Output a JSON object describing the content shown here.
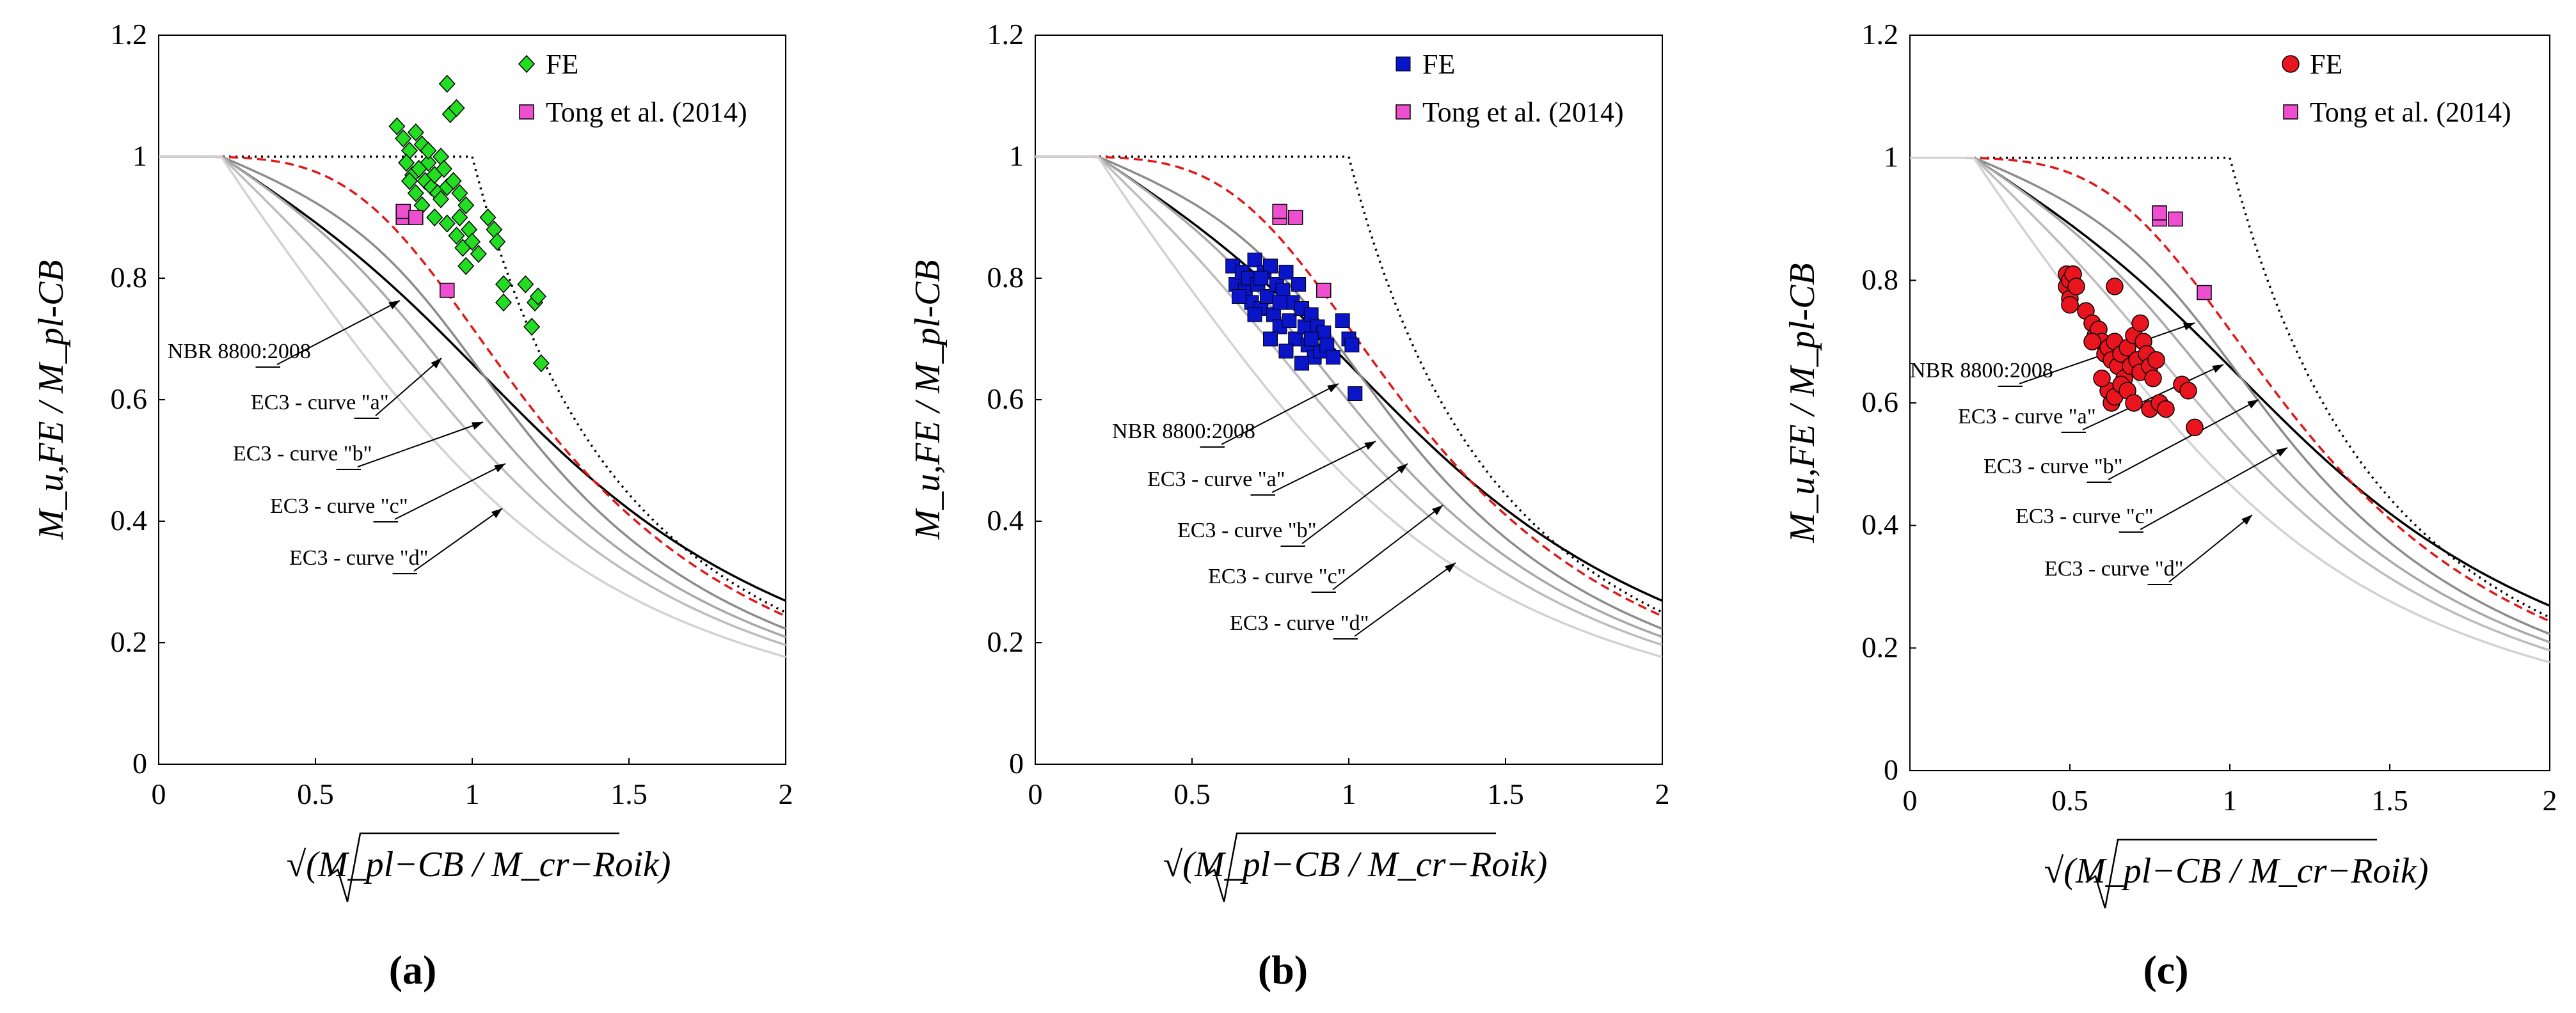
{
  "figure": {
    "panel_labels": [
      "(a)",
      "(b)",
      "(c)"
    ]
  },
  "chart_data": [
    {
      "type": "scatter",
      "panel": "(a)",
      "xlabel": "√(M_pl−CB / M_cr−Roik)",
      "ylabel": "M_u,FE / M_pl-CB",
      "xlim": [
        0,
        2
      ],
      "ylim": [
        0,
        1.2
      ],
      "x_ticks": [
        "0",
        "0.5",
        "1",
        "1.5",
        "2"
      ],
      "y_ticks": [
        "0",
        "0.2",
        "0.4",
        "0.6",
        "0.8",
        "1",
        "1.2"
      ],
      "legend": [
        "FE",
        "Tong et al. (2014)"
      ],
      "legend_position": "top-right",
      "fe_color": "#22dd22",
      "fe_marker": "diamond",
      "fe_points": [
        [
          0.76,
          1.05
        ],
        [
          0.78,
          1.03
        ],
        [
          0.8,
          1.01
        ],
        [
          0.82,
          1.04
        ],
        [
          0.84,
          1.02
        ],
        [
          0.86,
          0.99
        ],
        [
          0.79,
          0.99
        ],
        [
          0.81,
          0.97
        ],
        [
          0.83,
          0.98
        ],
        [
          0.85,
          0.96
        ],
        [
          0.87,
          0.95
        ],
        [
          0.89,
          0.94
        ],
        [
          0.88,
          0.97
        ],
        [
          0.9,
          0.93
        ],
        [
          0.92,
          0.95
        ],
        [
          0.94,
          0.96
        ],
        [
          0.96,
          0.94
        ],
        [
          0.98,
          0.92
        ],
        [
          0.9,
          1.0
        ],
        [
          0.91,
          0.98
        ],
        [
          0.93,
          1.07
        ],
        [
          0.95,
          1.08
        ],
        [
          0.92,
          1.12
        ],
        [
          0.86,
          1.01
        ],
        [
          0.84,
          0.92
        ],
        [
          0.88,
          0.9
        ],
        [
          0.92,
          0.89
        ],
        [
          0.95,
          0.87
        ],
        [
          0.97,
          0.85
        ],
        [
          0.99,
          0.88
        ],
        [
          1.0,
          0.86
        ],
        [
          1.02,
          0.84
        ],
        [
          0.98,
          0.82
        ],
        [
          0.96,
          0.9
        ],
        [
          1.05,
          0.9
        ],
        [
          1.07,
          0.88
        ],
        [
          1.08,
          0.86
        ],
        [
          1.1,
          0.79
        ],
        [
          1.1,
          0.76
        ],
        [
          1.17,
          0.79
        ],
        [
          1.2,
          0.76
        ],
        [
          1.21,
          0.77
        ],
        [
          1.19,
          0.72
        ],
        [
          1.22,
          0.66
        ],
        [
          0.8,
          0.96
        ],
        [
          0.82,
          0.94
        ]
      ],
      "tong_points": [
        [
          0.78,
          0.9
        ],
        [
          0.78,
          0.91
        ],
        [
          0.82,
          0.9
        ],
        [
          0.92,
          0.78
        ]
      ],
      "curves": [
        {
          "name": "Upper bound",
          "style": "dotted-black"
        },
        {
          "name": "NBR 8800:2008",
          "style": "solid-black"
        },
        {
          "name": "Red dashed",
          "style": "dashed-red"
        },
        {
          "name": "EC3 - curve \"a\"",
          "alpha": 0.21
        },
        {
          "name": "EC3 - curve \"b\"",
          "alpha": 0.34
        },
        {
          "name": "EC3 - curve \"c\"",
          "alpha": 0.49
        },
        {
          "name": "EC3 - curve \"d\"",
          "alpha": 0.76
        }
      ],
      "annotations": [
        "NBR 8800:2008",
        "EC3 - curve \"a\"",
        "EC3 - curve \"b\"",
        "EC3 - curve \"c\"",
        "EC3 - curve \"d\""
      ]
    },
    {
      "type": "scatter",
      "panel": "(b)",
      "xlabel": "√(M_pl−CB / M_cr−Roik)",
      "ylabel": "M_u,FE / M_pl-CB",
      "xlim": [
        0,
        2
      ],
      "ylim": [
        0,
        1.2
      ],
      "x_ticks": [
        "0",
        "0.5",
        "1",
        "1.5",
        "2"
      ],
      "y_ticks": [
        "0",
        "0.2",
        "0.4",
        "0.6",
        "0.8",
        "1",
        "1.2"
      ],
      "legend": [
        "FE",
        "Tong et al. (2014)"
      ],
      "legend_position": "top-right",
      "fe_color": "#0a14c8",
      "fe_marker": "square",
      "fe_points": [
        [
          0.63,
          0.82
        ],
        [
          0.64,
          0.79
        ],
        [
          0.66,
          0.81
        ],
        [
          0.67,
          0.78
        ],
        [
          0.68,
          0.8
        ],
        [
          0.69,
          0.76
        ],
        [
          0.7,
          0.83
        ],
        [
          0.71,
          0.79
        ],
        [
          0.72,
          0.75
        ],
        [
          0.73,
          0.81
        ],
        [
          0.74,
          0.77
        ],
        [
          0.75,
          0.82
        ],
        [
          0.76,
          0.74
        ],
        [
          0.77,
          0.79
        ],
        [
          0.78,
          0.72
        ],
        [
          0.79,
          0.78
        ],
        [
          0.8,
          0.81
        ],
        [
          0.81,
          0.73
        ],
        [
          0.82,
          0.76
        ],
        [
          0.83,
          0.7
        ],
        [
          0.84,
          0.79
        ],
        [
          0.85,
          0.75
        ],
        [
          0.86,
          0.72
        ],
        [
          0.87,
          0.69
        ],
        [
          0.88,
          0.74
        ],
        [
          0.89,
          0.67
        ],
        [
          0.9,
          0.72
        ],
        [
          0.91,
          0.68
        ],
        [
          0.92,
          0.71
        ],
        [
          0.93,
          0.69
        ],
        [
          0.95,
          0.67
        ],
        [
          0.98,
          0.73
        ],
        [
          1.0,
          0.7
        ],
        [
          1.01,
          0.69
        ],
        [
          1.02,
          0.61
        ],
        [
          0.65,
          0.77
        ],
        [
          0.7,
          0.74
        ],
        [
          0.75,
          0.7
        ],
        [
          0.8,
          0.68
        ],
        [
          0.85,
          0.66
        ],
        [
          0.72,
          0.8
        ],
        [
          0.78,
          0.76
        ],
        [
          0.88,
          0.7
        ]
      ],
      "tong_points": [
        [
          0.78,
          0.9
        ],
        [
          0.78,
          0.91
        ],
        [
          0.83,
          0.9
        ],
        [
          0.92,
          0.78
        ]
      ],
      "curves": [
        {
          "name": "Upper bound",
          "style": "dotted-black"
        },
        {
          "name": "NBR 8800:2008",
          "style": "solid-black"
        },
        {
          "name": "Red dashed",
          "style": "dashed-red"
        },
        {
          "name": "EC3 - curve \"a\"",
          "alpha": 0.21
        },
        {
          "name": "EC3 - curve \"b\"",
          "alpha": 0.34
        },
        {
          "name": "EC3 - curve \"c\"",
          "alpha": 0.49
        },
        {
          "name": "EC3 - curve \"d\"",
          "alpha": 0.76
        }
      ],
      "annotations": [
        "NBR 8800:2008",
        "EC3 - curve \"a\"",
        "EC3 - curve \"b\"",
        "EC3 - curve \"c\"",
        "EC3 - curve \"d\""
      ]
    },
    {
      "type": "scatter",
      "panel": "(c)",
      "xlabel": "√(M_pl−CB / M_cr−Roik)",
      "ylabel": "M_u,FE / M_pl-CB",
      "xlim": [
        0,
        2
      ],
      "ylim": [
        0,
        1.2
      ],
      "x_ticks": [
        "0",
        "0.5",
        "1",
        "1.5",
        "2"
      ],
      "y_ticks": [
        "0",
        "0.2",
        "0.4",
        "0.6",
        "0.8",
        "1",
        "1.2"
      ],
      "legend": [
        "FE",
        "Tong et al. (2014)"
      ],
      "legend_position": "top-right",
      "fe_color": "#e8141e",
      "fe_marker": "circle",
      "fe_points": [
        [
          0.49,
          0.81
        ],
        [
          0.49,
          0.79
        ],
        [
          0.5,
          0.77
        ],
        [
          0.5,
          0.8
        ],
        [
          0.51,
          0.81
        ],
        [
          0.52,
          0.79
        ],
        [
          0.5,
          0.76
        ],
        [
          0.55,
          0.75
        ],
        [
          0.57,
          0.73
        ],
        [
          0.58,
          0.71
        ],
        [
          0.59,
          0.72
        ],
        [
          0.6,
          0.7
        ],
        [
          0.61,
          0.68
        ],
        [
          0.62,
          0.69
        ],
        [
          0.63,
          0.67
        ],
        [
          0.64,
          0.7
        ],
        [
          0.65,
          0.66
        ],
        [
          0.66,
          0.68
        ],
        [
          0.67,
          0.64
        ],
        [
          0.68,
          0.69
        ],
        [
          0.69,
          0.66
        ],
        [
          0.7,
          0.71
        ],
        [
          0.71,
          0.67
        ],
        [
          0.72,
          0.65
        ],
        [
          0.73,
          0.7
        ],
        [
          0.74,
          0.68
        ],
        [
          0.75,
          0.66
        ],
        [
          0.76,
          0.64
        ],
        [
          0.77,
          0.67
        ],
        [
          0.62,
          0.62
        ],
        [
          0.63,
          0.6
        ],
        [
          0.64,
          0.61
        ],
        [
          0.66,
          0.63
        ],
        [
          0.68,
          0.62
        ],
        [
          0.7,
          0.6
        ],
        [
          0.75,
          0.59
        ],
        [
          0.78,
          0.6
        ],
        [
          0.8,
          0.59
        ],
        [
          0.85,
          0.63
        ],
        [
          0.87,
          0.62
        ],
        [
          0.89,
          0.56
        ],
        [
          0.6,
          0.64
        ],
        [
          0.72,
          0.73
        ],
        [
          0.64,
          0.79
        ],
        [
          0.57,
          0.7
        ]
      ],
      "tong_points": [
        [
          0.78,
          0.9
        ],
        [
          0.78,
          0.91
        ],
        [
          0.83,
          0.9
        ],
        [
          0.92,
          0.78
        ]
      ],
      "curves": [
        {
          "name": "Upper bound",
          "style": "dotted-black"
        },
        {
          "name": "NBR 8800:2008",
          "style": "solid-black"
        },
        {
          "name": "Red dashed",
          "style": "dashed-red"
        },
        {
          "name": "EC3 - curve \"a\"",
          "alpha": 0.21
        },
        {
          "name": "EC3 - curve \"b\"",
          "alpha": 0.34
        },
        {
          "name": "EC3 - curve \"c\"",
          "alpha": 0.49
        },
        {
          "name": "EC3 - curve \"d\"",
          "alpha": 0.76
        }
      ],
      "annotations": [
        "NBR 8800:2008",
        "EC3 - curve \"a\"",
        "EC3 - curve \"b\"",
        "EC3 - curve \"c\"",
        "EC3 - curve \"d\""
      ]
    }
  ]
}
